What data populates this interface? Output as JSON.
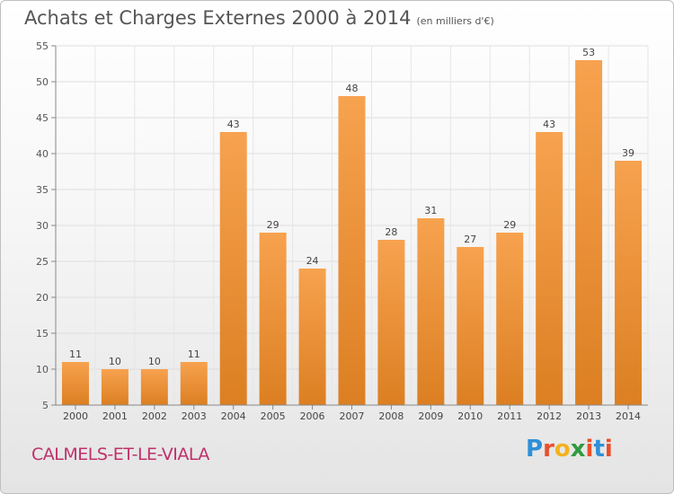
{
  "header": {
    "title": "Achats et Charges Externes 2000 à 2014",
    "unit": "(en milliers d'€)"
  },
  "footer": {
    "commune": "CALMELS-ET-LE-VIALA",
    "brand": "Proxiti"
  },
  "colors": {
    "bar_light": "#f7a24f",
    "bar_dark": "#dc7f22",
    "commune_text": "#c0306a",
    "brand_letters": [
      "#2f8fd8",
      "#e8502a",
      "#f2b21e",
      "#2e9b3e",
      "#e8502a",
      "#2f8fd8",
      "#e8502a"
    ]
  },
  "chart_data": {
    "type": "bar",
    "title": "Achats et Charges Externes 2000 à 2014",
    "subtitle": "(en milliers d'€)",
    "xlabel": "",
    "ylabel": "",
    "categories": [
      "2000",
      "2001",
      "2002",
      "2003",
      "2004",
      "2005",
      "2006",
      "2007",
      "2008",
      "2009",
      "2010",
      "2011",
      "2012",
      "2013",
      "2014"
    ],
    "values": [
      11,
      10,
      10,
      11,
      43,
      29,
      24,
      48,
      28,
      31,
      27,
      29,
      43,
      53,
      39
    ],
    "ylim": [
      5,
      55
    ],
    "yticks": [
      5,
      10,
      15,
      20,
      25,
      30,
      35,
      40,
      45,
      50,
      55
    ],
    "grid": true,
    "legend": "none"
  }
}
